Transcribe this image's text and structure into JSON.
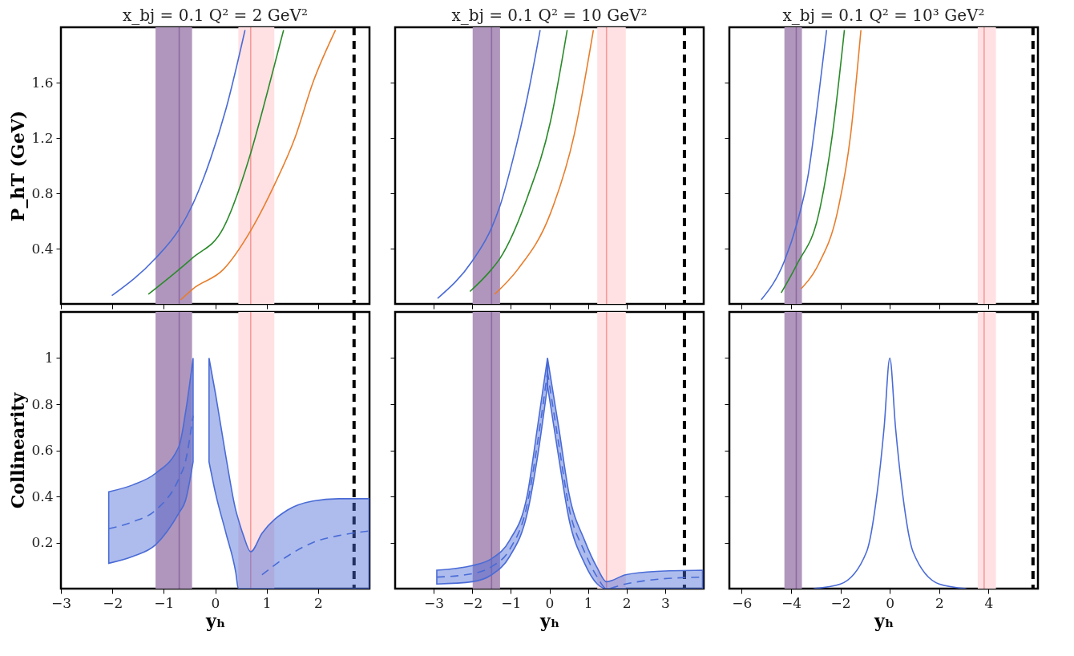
{
  "chart_data": [
    {
      "type": "line",
      "title": "x_bj = 0.1  Q² = 2 GeV²",
      "ylabel": "P_hT (GeV)",
      "xlim": [
        -3,
        3
      ],
      "xticks": [
        -3,
        -2,
        -1,
        0,
        1,
        2
      ],
      "ylim": [
        0,
        2
      ],
      "yticks": [
        0.4,
        0.8,
        1.2,
        1.6
      ],
      "tick_labels": "y",
      "grid": false,
      "line_style": "solid",
      "bands": [
        {
          "axis": "x",
          "from": -1.16,
          "to": -0.45,
          "color": "#b096bd"
        },
        {
          "axis": "x",
          "from": 0.45,
          "to": 1.15,
          "color": "#ffe1e4"
        }
      ],
      "ref_lines": [
        {
          "axis": "x",
          "value": -0.7,
          "color": "#8e6aa0",
          "line_style": "solid"
        },
        {
          "axis": "x",
          "value": 0.69,
          "color": "#f59a9a",
          "line_style": "solid"
        },
        {
          "axis": "x",
          "value": 2.7,
          "color": "#000000",
          "line_style": "dashed"
        }
      ],
      "series": [
        {
          "color": "#4a6bd6",
          "x": [
            -2.01,
            -1.16,
            -0.7,
            -0.45,
            -0.09,
            0.21,
            0.58
          ],
          "values": [
            0.06,
            0.33,
            0.54,
            0.71,
            1.05,
            1.41,
            1.98
          ]
        },
        {
          "color": "#2a8a2a",
          "x": [
            -1.3,
            -0.7,
            -0.45,
            0.16,
            0.69,
            1.0,
            1.33
          ],
          "values": [
            0.07,
            0.25,
            0.33,
            0.55,
            1.09,
            1.51,
            1.98
          ]
        },
        {
          "color": "#e87d2b",
          "x": [
            -0.67,
            -0.43,
            0.16,
            0.69,
            1.15,
            1.55,
            1.9,
            2.34
          ],
          "values": [
            0.03,
            0.11,
            0.25,
            0.53,
            0.86,
            1.2,
            1.6,
            1.98
          ]
        }
      ]
    },
    {
      "type": "line",
      "title": "x_bj = 0.1  Q² = 10 GeV²",
      "xlim": [
        -4,
        4
      ],
      "xticks": [
        -3,
        -2,
        -1,
        0,
        1,
        2,
        3
      ],
      "ylim": [
        0,
        2
      ],
      "yticks": [
        0.4,
        0.8,
        1.2,
        1.6
      ],
      "tick_labels": false,
      "grid": false,
      "line_style": "solid",
      "bands": [
        {
          "axis": "x",
          "from": -1.99,
          "to": -1.28,
          "color": "#b096bd"
        },
        {
          "axis": "x",
          "from": 1.24,
          "to": 1.98,
          "color": "#ffe1e4"
        }
      ],
      "ref_lines": [
        {
          "axis": "x",
          "value": -1.5,
          "color": "#8e6aa0",
          "line_style": "solid"
        },
        {
          "axis": "x",
          "value": 1.48,
          "color": "#f59a9a",
          "line_style": "solid"
        },
        {
          "axis": "x",
          "value": 3.5,
          "color": "#000000",
          "line_style": "dashed"
        }
      ],
      "series": [
        {
          "color": "#4a6bd6",
          "x": [
            -2.9,
            -2.0,
            -1.5,
            -1.28,
            -0.96,
            -0.56,
            -0.24
          ],
          "values": [
            0.04,
            0.31,
            0.55,
            0.71,
            1.03,
            1.51,
            1.98
          ]
        },
        {
          "color": "#2a8a2a",
          "x": [
            -2.06,
            -1.5,
            -1.28,
            -0.56,
            0.02,
            0.46
          ],
          "values": [
            0.09,
            0.25,
            0.33,
            0.78,
            1.31,
            1.98
          ]
        },
        {
          "color": "#e87d2b",
          "x": [
            -1.42,
            -0.82,
            0.02,
            0.64,
            1.14
          ],
          "values": [
            0.07,
            0.25,
            0.65,
            1.22,
            1.98
          ]
        }
      ]
    },
    {
      "type": "line",
      "title": "x_bj = 0.1  Q² = 10³ GeV²",
      "xlim": [
        -6.5,
        6
      ],
      "xticks": [
        -6,
        -4,
        -2,
        0,
        2,
        4
      ],
      "ylim": [
        0,
        2
      ],
      "yticks": [
        0.4,
        0.8,
        1.2,
        1.6
      ],
      "tick_labels": false,
      "grid": false,
      "line_style": "solid",
      "bands": [
        {
          "axis": "x",
          "from": -4.27,
          "to": -3.56,
          "color": "#b096bd"
        },
        {
          "axis": "x",
          "from": 3.56,
          "to": 4.3,
          "color": "#ffe1e4"
        }
      ],
      "ref_lines": [
        {
          "axis": "x",
          "value": -3.79,
          "color": "#8e6aa0",
          "line_style": "solid"
        },
        {
          "axis": "x",
          "value": 3.82,
          "color": "#f59a9a",
          "line_style": "solid"
        },
        {
          "axis": "x",
          "value": 5.8,
          "color": "#000000",
          "line_style": "dashed"
        }
      ],
      "series": [
        {
          "color": "#4a6bd6",
          "x": [
            -5.21,
            -4.27,
            -3.75,
            -3.3,
            -2.88,
            -2.56
          ],
          "values": [
            0.03,
            0.31,
            0.59,
            0.94,
            1.51,
            1.98
          ]
        },
        {
          "color": "#2a8a2a",
          "x": [
            -4.4,
            -3.75,
            -2.88,
            -2.33,
            -1.84
          ],
          "values": [
            0.08,
            0.29,
            0.65,
            1.22,
            1.98
          ]
        },
        {
          "color": "#e87d2b",
          "x": [
            -3.59,
            -2.88,
            -2.14,
            -1.59,
            -1.17
          ],
          "values": [
            0.11,
            0.29,
            0.65,
            1.22,
            1.98
          ]
        }
      ]
    },
    {
      "type": "line",
      "xlabel": "yₕ",
      "ylabel": "Collinearity",
      "xlim": [
        -3,
        3
      ],
      "xticks": [
        -3,
        -2,
        -1,
        0,
        1,
        2
      ],
      "ylim": [
        0,
        1.2
      ],
      "yticks": [
        0.2,
        0.4,
        0.6,
        0.8,
        1.0
      ],
      "grid": false,
      "bands": [
        {
          "axis": "x",
          "from": -1.16,
          "to": -0.45,
          "color": "#b096bd"
        },
        {
          "axis": "x",
          "from": 0.45,
          "to": 1.15,
          "color": "#ffe1e4"
        }
      ],
      "ref_lines": [
        {
          "axis": "x",
          "value": -0.7,
          "color": "#8e6aa0",
          "line_style": "solid"
        },
        {
          "axis": "x",
          "value": 0.69,
          "color": "#f59a9a",
          "line_style": "solid"
        },
        {
          "axis": "x",
          "value": 2.7,
          "color": "#000000",
          "line_style": "dashed"
        }
      ],
      "series": [
        {
          "color": "#4a6bd6",
          "line_style": "dashed",
          "x": [
            -2.07,
            -1.6,
            -1.16,
            -0.7,
            -0.58,
            -0.43
          ],
          "values": [
            0.26,
            0.29,
            0.34,
            0.48,
            0.55,
            0.75
          ],
          "lower": [
            0.11,
            0.14,
            0.19,
            0.33,
            0.38,
            0.55
          ],
          "upper": [
            0.42,
            0.45,
            0.5,
            0.62,
            0.76,
            1.0
          ]
        },
        {
          "color": "#4a6bd6",
          "line_style": "dashed",
          "x": [
            -0.12,
            0.01,
            0.21,
            0.4,
            0.45,
            0.55,
            0.69,
            0.91,
            1.4,
            1.9,
            2.4,
            3.0
          ],
          "values": [
            null,
            null,
            null,
            null,
            null,
            null,
            null,
            0.06,
            0.14,
            0.2,
            0.23,
            0.25
          ],
          "lower": [
            0.55,
            0.41,
            0.24,
            0.07,
            0,
            0,
            0,
            0,
            0,
            0,
            0,
            0
          ],
          "upper": [
            1.0,
            0.84,
            0.57,
            0.34,
            0.3,
            0.23,
            0.16,
            0.24,
            0.34,
            0.38,
            0.39,
            0.39
          ]
        }
      ]
    },
    {
      "type": "line",
      "xlabel": "yₕ",
      "xlim": [
        -4,
        4
      ],
      "xticks": [
        -3,
        -2,
        -1,
        0,
        1,
        2,
        3
      ],
      "ylim": [
        0,
        1.2
      ],
      "yticks": [
        0.2,
        0.4,
        0.6,
        0.8,
        1.0
      ],
      "tick_labels": "x",
      "grid": false,
      "bands": [
        {
          "axis": "x",
          "from": -1.99,
          "to": -1.28,
          "color": "#b096bd"
        },
        {
          "axis": "x",
          "from": 1.24,
          "to": 1.98,
          "color": "#ffe1e4"
        }
      ],
      "ref_lines": [
        {
          "axis": "x",
          "value": -1.5,
          "color": "#8e6aa0",
          "line_style": "solid"
        },
        {
          "axis": "x",
          "value": 1.48,
          "color": "#f59a9a",
          "line_style": "solid"
        },
        {
          "axis": "x",
          "value": 3.5,
          "color": "#000000",
          "line_style": "dashed"
        }
      ],
      "series": [
        {
          "color": "#4a6bd6",
          "line_style": "dashed",
          "x": [
            -2.92,
            -2.0,
            -1.5,
            -1.03,
            -0.57,
            -0.31,
            -0.05
          ],
          "values": [
            0.05,
            0.065,
            0.095,
            0.17,
            0.37,
            0.63,
            0.94
          ],
          "lower": [
            0.02,
            0.03,
            0.06,
            0.14,
            0.33,
            0.57,
            0.88
          ],
          "upper": [
            0.08,
            0.1,
            0.13,
            0.21,
            0.41,
            0.7,
            1.0
          ]
        },
        {
          "color": "#4a6bd6",
          "line_style": "dashed",
          "x": [
            -0.05,
            0.24,
            0.51,
            0.91,
            1.24,
            1.48,
            1.97,
            2.77,
            3.97
          ],
          "values": [
            0.94,
            0.63,
            0.35,
            0.16,
            0.05,
            0.0,
            0.02,
            0.04,
            0.05
          ],
          "lower": [
            0.88,
            0.57,
            0.3,
            0.11,
            0.02,
            0,
            0,
            0,
            0
          ],
          "upper": [
            1.0,
            0.7,
            0.41,
            0.21,
            0.09,
            0.03,
            0.06,
            0.075,
            0.08
          ]
        }
      ]
    },
    {
      "type": "line",
      "xlabel": "yₕ",
      "xlim": [
        -6.5,
        6
      ],
      "xticks": [
        -6,
        -4,
        -2,
        0,
        2,
        4
      ],
      "ylim": [
        0,
        1.2
      ],
      "yticks": [
        0.2,
        0.4,
        0.6,
        0.8,
        1.0
      ],
      "tick_labels": "x",
      "grid": false,
      "line_style": "solid",
      "bands": [
        {
          "axis": "x",
          "from": -4.27,
          "to": -3.56,
          "color": "#b096bd"
        },
        {
          "axis": "x",
          "from": 3.56,
          "to": 4.3,
          "color": "#ffe1e4"
        }
      ],
      "ref_lines": [
        {
          "axis": "x",
          "value": -3.79,
          "color": "#8e6aa0",
          "line_style": "solid"
        },
        {
          "axis": "x",
          "value": 3.82,
          "color": "#f59a9a",
          "line_style": "solid"
        },
        {
          "axis": "x",
          "value": 5.8,
          "color": "#000000",
          "line_style": "dashed"
        }
      ],
      "series": [
        {
          "color": "#4a6bd6",
          "x": [
            -3.1,
            -2.0,
            -0.94,
            -0.52,
            -0.23,
            0,
            0.23,
            0.52,
            0.94,
            2.0,
            3.1
          ],
          "values": [
            0.0,
            0.02,
            0.16,
            0.41,
            0.7,
            1.0,
            0.7,
            0.41,
            0.16,
            0.02,
            0.0
          ]
        }
      ]
    }
  ]
}
